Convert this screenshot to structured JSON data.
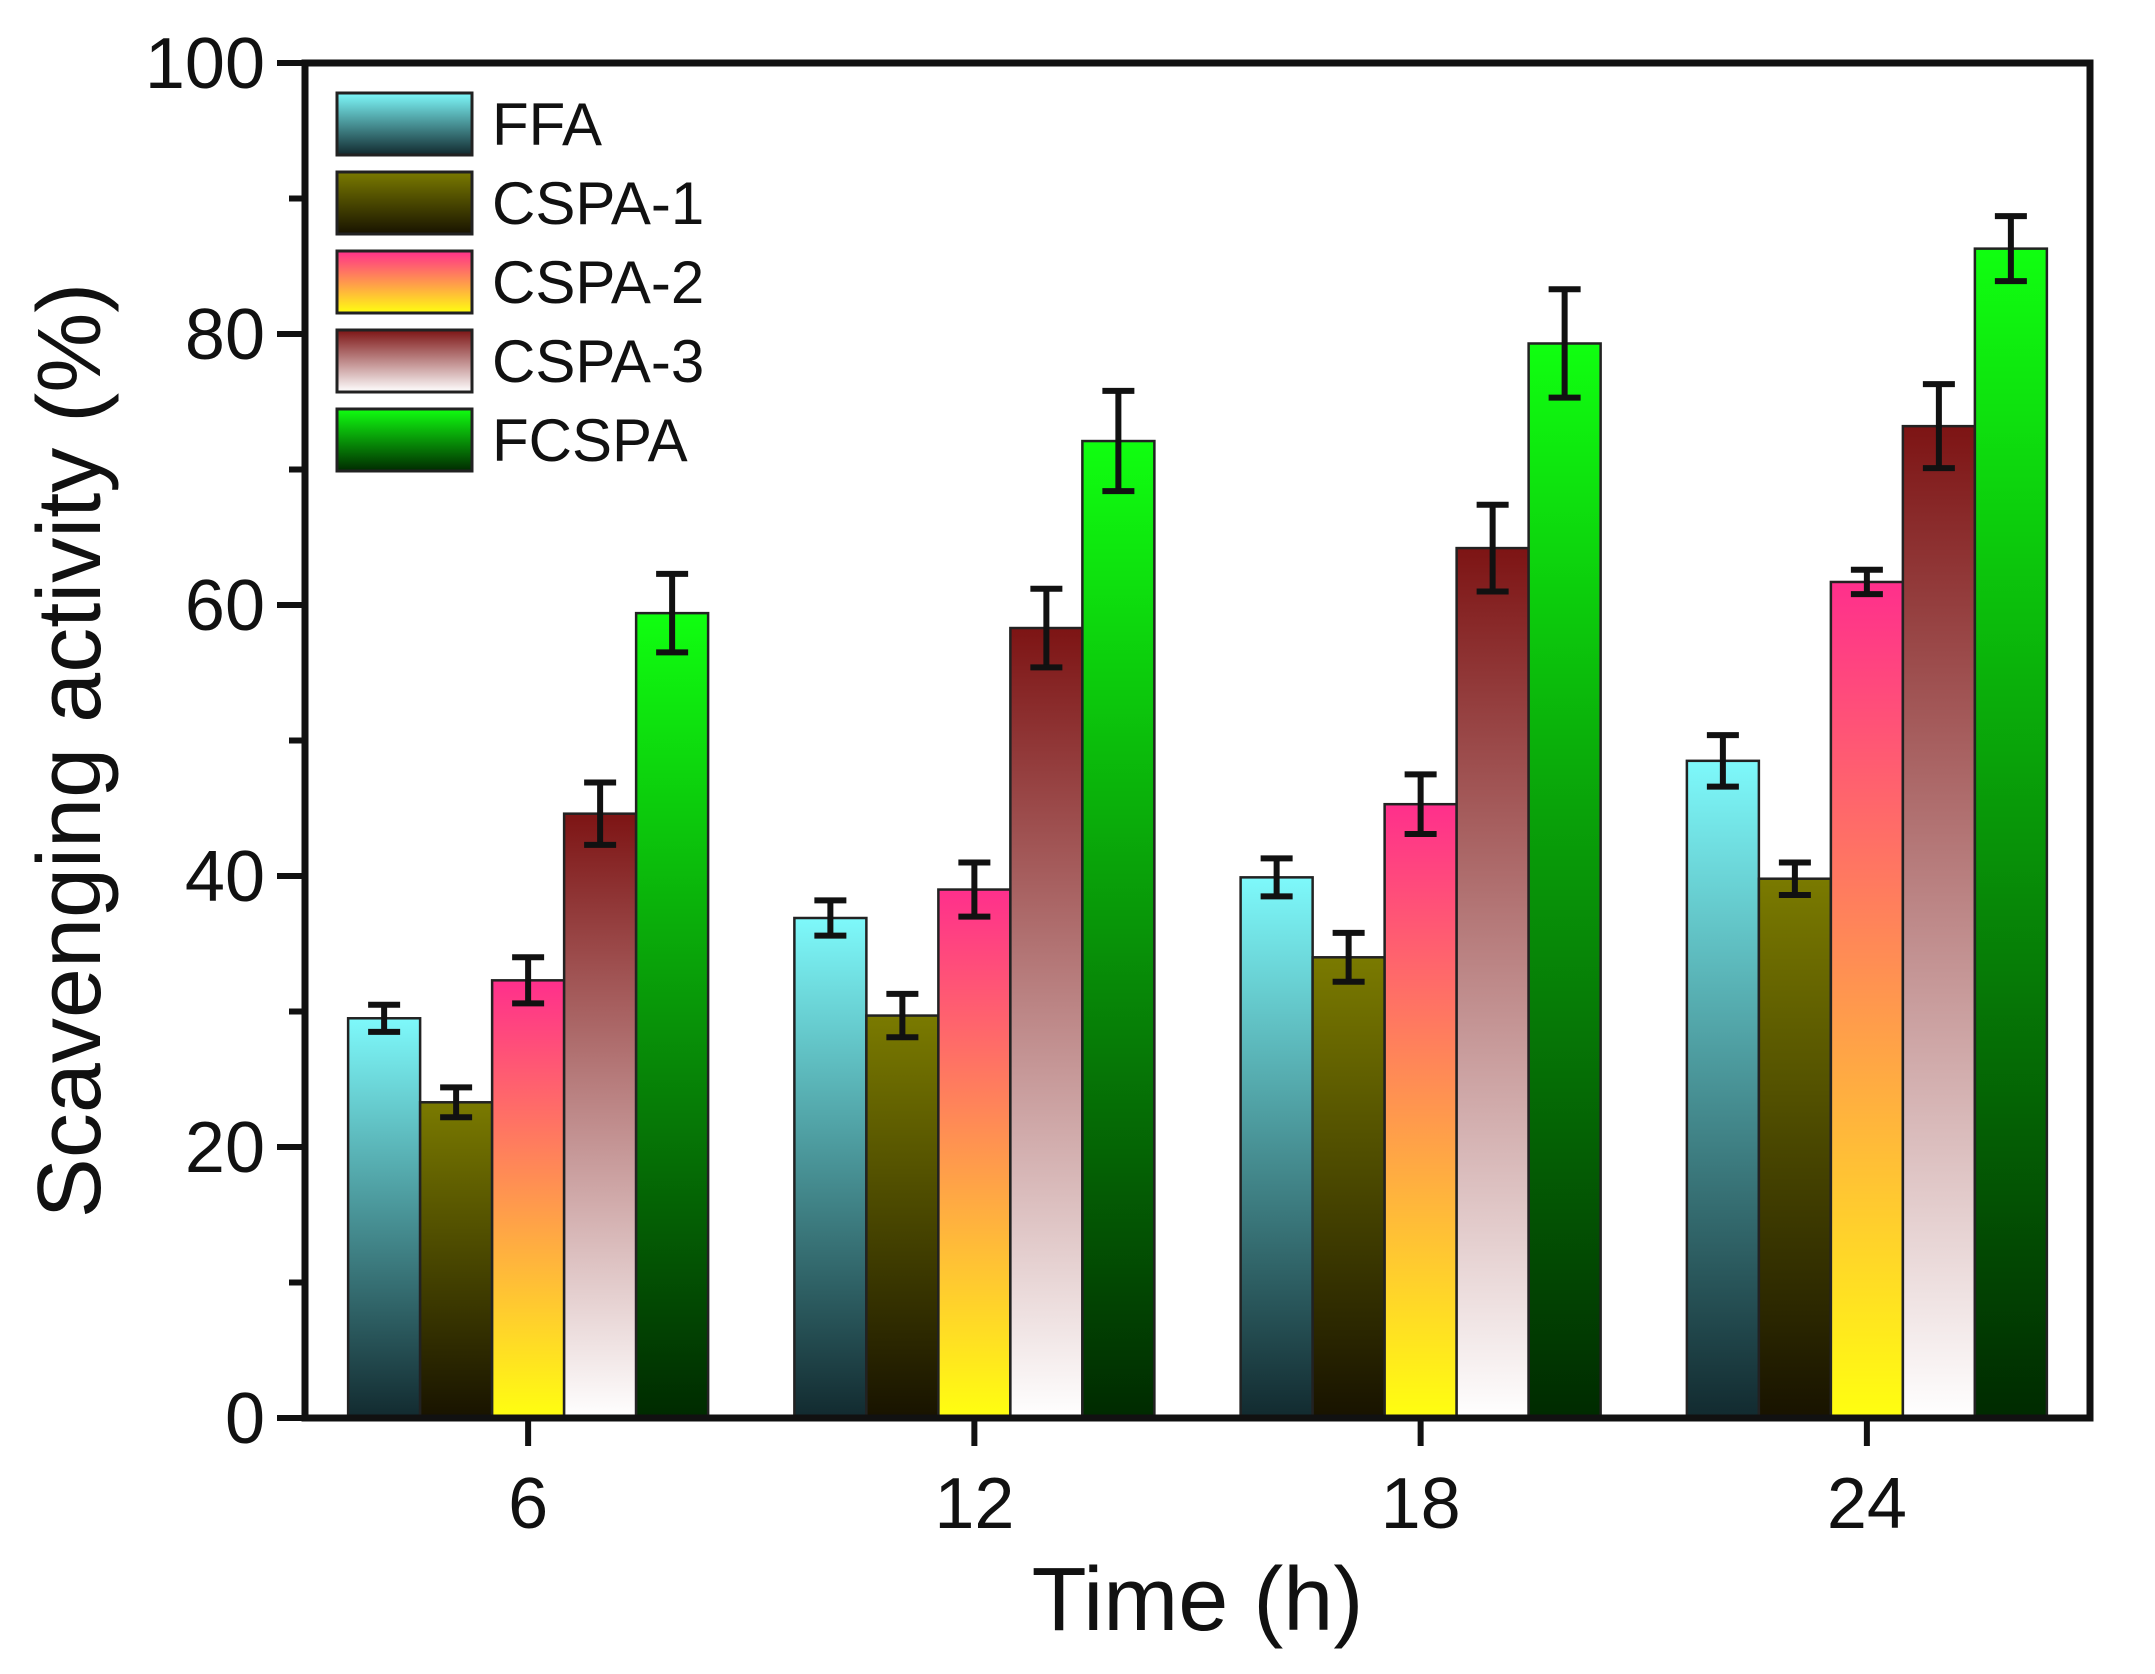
{
  "chart_data": {
    "type": "bar",
    "title": "",
    "xlabel": "Time (h)",
    "ylabel": "Scavenging activity (%)",
    "ylim": [
      0,
      100
    ],
    "yticks": [
      "0",
      "20",
      "40",
      "60",
      "80",
      "100"
    ],
    "categories": [
      "6",
      "12",
      "18",
      "24"
    ],
    "legend_position": "top-left",
    "series": [
      {
        "name": "FFA",
        "values": [
          29.5,
          36.9,
          39.9,
          48.5
        ],
        "errors": [
          1.0,
          1.3,
          1.4,
          1.9
        ],
        "gradient": [
          "#7ef9fb",
          "#122a2f"
        ]
      },
      {
        "name": "CSPA-1",
        "values": [
          23.3,
          29.7,
          34.0,
          39.8
        ],
        "errors": [
          1.1,
          1.6,
          1.8,
          1.2
        ],
        "gradient": [
          "#7a7a00",
          "#181300"
        ]
      },
      {
        "name": "CSPA-2",
        "values": [
          32.3,
          39.0,
          45.3,
          61.7
        ],
        "errors": [
          1.7,
          2.0,
          2.2,
          0.9
        ],
        "gradient": [
          "#ff2f8c",
          "#ffff10"
        ]
      },
      {
        "name": "CSPA-3",
        "values": [
          44.6,
          58.3,
          64.2,
          73.2
        ],
        "errors": [
          2.3,
          2.9,
          3.2,
          3.1
        ],
        "gradient": [
          "#7d1414",
          "#ffffff"
        ]
      },
      {
        "name": "FCSPA",
        "values": [
          59.4,
          72.1,
          79.3,
          86.3
        ],
        "errors": [
          2.9,
          3.7,
          4.0,
          2.4
        ],
        "gradient": [
          "#10ff10",
          "#002a00"
        ]
      }
    ]
  }
}
